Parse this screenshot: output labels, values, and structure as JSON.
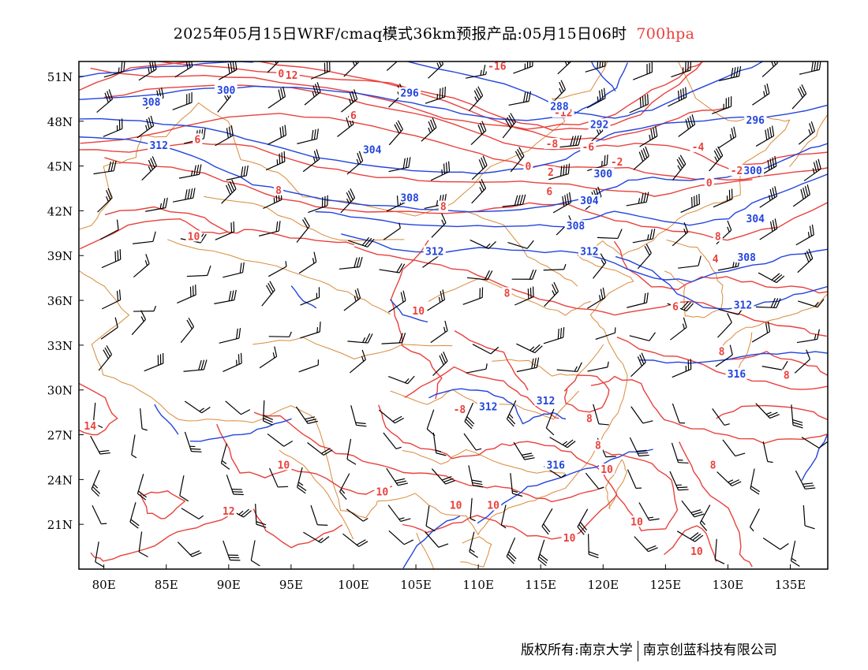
{
  "title": {
    "main": "2025年05月15日WRF/cmaq模式36km预报产品:05月15日06时",
    "level": "700hpa",
    "level_color": "#e8413c"
  },
  "axes": {
    "lat_labels": [
      "51N",
      "48N",
      "45N",
      "42N",
      "39N",
      "36N",
      "33N",
      "30N",
      "27N",
      "24N",
      "21N"
    ],
    "lat_values": [
      51,
      48,
      45,
      42,
      39,
      36,
      33,
      30,
      27,
      24,
      21
    ],
    "lon_labels": [
      "80E",
      "85E",
      "90E",
      "95E",
      "100E",
      "105E",
      "110E",
      "115E",
      "120E",
      "125E",
      "130E",
      "135E"
    ],
    "lon_values": [
      80,
      85,
      90,
      95,
      100,
      105,
      110,
      115,
      120,
      125,
      130,
      135
    ],
    "lon_range": [
      78,
      138
    ],
    "lat_range": [
      18,
      52
    ]
  },
  "colors": {
    "height_contour": "#2244dd",
    "temperature_contour": "#e8413c",
    "boundary": "#d98a3a",
    "wind_barb": "#000000"
  },
  "height_labels": [
    {
      "text": "300",
      "lon": 89.8,
      "lat": 50.0
    },
    {
      "text": "296",
      "lon": 104.5,
      "lat": 49.8
    },
    {
      "text": "288",
      "lon": 116.5,
      "lat": 48.9
    },
    {
      "text": "292",
      "lon": 119.7,
      "lat": 47.7
    },
    {
      "text": "296",
      "lon": 132.2,
      "lat": 48.0
    },
    {
      "text": "308",
      "lon": 83.8,
      "lat": 49.2
    },
    {
      "text": "312",
      "lon": 84.4,
      "lat": 46.3
    },
    {
      "text": "304",
      "lon": 101.5,
      "lat": 46.0
    },
    {
      "text": "300",
      "lon": 120.0,
      "lat": 44.4
    },
    {
      "text": "300",
      "lon": 132.0,
      "lat": 44.6
    },
    {
      "text": "308",
      "lon": 104.5,
      "lat": 42.8
    },
    {
      "text": "304",
      "lon": 118.9,
      "lat": 42.6
    },
    {
      "text": "304",
      "lon": 132.2,
      "lat": 41.4
    },
    {
      "text": "308",
      "lon": 117.8,
      "lat": 40.9
    },
    {
      "text": "312",
      "lon": 106.5,
      "lat": 39.2
    },
    {
      "text": "312",
      "lon": 118.9,
      "lat": 39.2
    },
    {
      "text": "308",
      "lon": 131.5,
      "lat": 38.8
    },
    {
      "text": "312",
      "lon": 131.2,
      "lat": 35.6
    },
    {
      "text": "316",
      "lon": 130.7,
      "lat": 31.0
    },
    {
      "text": "312",
      "lon": 110.8,
      "lat": 28.8
    },
    {
      "text": "312",
      "lon": 115.4,
      "lat": 29.2
    },
    {
      "text": "316",
      "lon": 116.2,
      "lat": 24.9
    }
  ],
  "temperature_labels": [
    {
      "text": "-12",
      "lon": 94.8,
      "lat": 51.0
    },
    {
      "text": "0",
      "lon": 94.2,
      "lat": 51.1
    },
    {
      "text": "-4",
      "lon": 89.5,
      "lat": 50.0
    },
    {
      "text": "-16",
      "lon": 111.5,
      "lat": 51.6
    },
    {
      "text": "-12",
      "lon": 116.8,
      "lat": 48.5
    },
    {
      "text": "-8",
      "lon": 115.9,
      "lat": 46.4
    },
    {
      "text": "-6",
      "lon": 118.8,
      "lat": 46.2
    },
    {
      "text": "-4",
      "lon": 127.6,
      "lat": 46.2
    },
    {
      "text": "-2",
      "lon": 121.1,
      "lat": 45.2
    },
    {
      "text": "0",
      "lon": 114.0,
      "lat": 44.9
    },
    {
      "text": "2",
      "lon": 115.8,
      "lat": 44.5
    },
    {
      "text": "-2",
      "lon": 130.7,
      "lat": 44.6
    },
    {
      "text": "0",
      "lon": 128.5,
      "lat": 43.8
    },
    {
      "text": "6",
      "lon": 100.0,
      "lat": 48.3
    },
    {
      "text": "6",
      "lon": 87.5,
      "lat": 46.7
    },
    {
      "text": "8",
      "lon": 94.0,
      "lat": 43.3
    },
    {
      "text": "8",
      "lon": 107.2,
      "lat": 42.2
    },
    {
      "text": "6",
      "lon": 115.7,
      "lat": 43.2
    },
    {
      "text": "8",
      "lon": 129.2,
      "lat": 40.2
    },
    {
      "text": "4",
      "lon": 129.0,
      "lat": 38.7
    },
    {
      "text": "10",
      "lon": 87.2,
      "lat": 40.2
    },
    {
      "text": "10",
      "lon": 105.2,
      "lat": 35.2
    },
    {
      "text": "8",
      "lon": 112.3,
      "lat": 36.4
    },
    {
      "text": "6",
      "lon": 125.8,
      "lat": 35.5
    },
    {
      "text": "8",
      "lon": 129.5,
      "lat": 32.5
    },
    {
      "text": "8",
      "lon": 134.7,
      "lat": 30.9
    },
    {
      "text": "-8",
      "lon": 108.5,
      "lat": 28.6
    },
    {
      "text": "8",
      "lon": 118.9,
      "lat": 28.0
    },
    {
      "text": "8",
      "lon": 119.6,
      "lat": 26.2
    },
    {
      "text": "10",
      "lon": 120.3,
      "lat": 24.6
    },
    {
      "text": "8",
      "lon": 128.8,
      "lat": 24.9
    },
    {
      "text": "14",
      "lon": 78.9,
      "lat": 27.5
    },
    {
      "text": "10",
      "lon": 94.4,
      "lat": 24.9
    },
    {
      "text": "10",
      "lon": 102.3,
      "lat": 23.1
    },
    {
      "text": "12",
      "lon": 90.0,
      "lat": 21.8
    },
    {
      "text": "10",
      "lon": 108.2,
      "lat": 22.2
    },
    {
      "text": "10",
      "lon": 111.2,
      "lat": 22.2
    },
    {
      "text": "10",
      "lon": 117.3,
      "lat": 20.0
    },
    {
      "text": "10",
      "lon": 122.7,
      "lat": 21.1
    },
    {
      "text": "10",
      "lon": 127.5,
      "lat": 19.1
    }
  ],
  "footer": {
    "left": "版权所有:南京大学",
    "right": "南京创蓝科技有限公司"
  }
}
